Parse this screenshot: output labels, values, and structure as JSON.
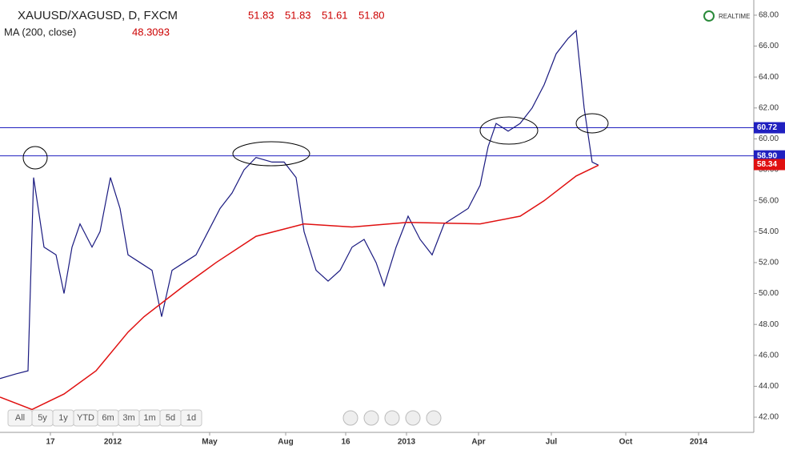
{
  "chart_data": {
    "type": "line",
    "title": "XAUUSD/XAGUSD, D, FXCM",
    "ohlc_labels": [
      "51.83",
      "51.83",
      "51.61",
      "51.80"
    ],
    "indicator": "MA (200, close)",
    "indicator_value": "48.3093",
    "realtime": "REALTIME",
    "xlim": [
      0,
      94.2
    ],
    "xticks": [
      {
        "value": 6.3,
        "label": "17"
      },
      {
        "value": 14.1,
        "label": "2012"
      },
      {
        "value": 26.2,
        "label": "May"
      },
      {
        "value": 35.7,
        "label": "Aug"
      },
      {
        "value": 43.2,
        "label": "16"
      },
      {
        "value": 50.8,
        "label": "2013"
      },
      {
        "value": 59.8,
        "label": "Apr"
      },
      {
        "value": 68.9,
        "label": "Jul"
      },
      {
        "value": 78.2,
        "label": "Oct"
      },
      {
        "value": 87.3,
        "label": "2014"
      }
    ],
    "ylim": [
      41.5,
      68.5
    ],
    "yticks": [
      {
        "value": 42,
        "label": "42.00"
      },
      {
        "value": 44,
        "label": "44.00"
      },
      {
        "value": 46,
        "label": "46.00"
      },
      {
        "value": 48,
        "label": "48.00"
      },
      {
        "value": 50,
        "label": "50.00"
      },
      {
        "value": 52,
        "label": "52.00"
      },
      {
        "value": 54,
        "label": "54.00"
      },
      {
        "value": 56,
        "label": "56.00"
      },
      {
        "value": 58,
        "label": "58.00"
      },
      {
        "value": 60,
        "label": "60.00"
      },
      {
        "value": 62,
        "label": "62.00"
      },
      {
        "value": 64,
        "label": "64.00"
      },
      {
        "value": 66,
        "label": "66.00"
      },
      {
        "value": 68,
        "label": "68.00"
      }
    ],
    "series": [
      {
        "name": "XAUUSD/XAGUSD",
        "color": "#1a1a80",
        "x": [
          0,
          2,
          3.5,
          4.2,
          5.5,
          7,
          8,
          9,
          10,
          11.5,
          12.5,
          13.8,
          15,
          16,
          17.5,
          19,
          20.2,
          21.5,
          23,
          24.5,
          26,
          27.5,
          29,
          30.5,
          32,
          34,
          35.5,
          37,
          38,
          39.5,
          41,
          42.5,
          44,
          45.5,
          47,
          48,
          49.5,
          51,
          52.5,
          54,
          55.5,
          57,
          58.5,
          60,
          61,
          62,
          63.5,
          65,
          66.5,
          68,
          69.5,
          71,
          72,
          73,
          74,
          74.8
        ],
        "values": [
          44.5,
          44.8,
          45,
          57.5,
          53,
          52.5,
          50,
          53,
          54.5,
          53,
          54,
          57.5,
          55.5,
          52.5,
          52,
          51.5,
          48.5,
          51.5,
          52,
          52.5,
          54,
          55.5,
          56.5,
          58,
          58.8,
          58.5,
          58.5,
          57.5,
          54,
          51.5,
          50.8,
          51.5,
          53,
          53.5,
          52,
          50.5,
          53,
          55,
          53.5,
          52.5,
          54.5,
          55,
          55.5,
          57,
          59.5,
          61,
          60.5,
          61,
          62,
          63.5,
          65.5,
          66.5,
          67,
          62,
          58.5,
          58.3
        ]
      },
      {
        "name": "MA (200, close)",
        "color": "#e01010",
        "x": [
          0,
          4,
          8,
          12,
          16,
          18,
          23,
          27,
          32,
          38,
          44,
          51,
          60,
          65,
          68,
          72,
          74.8
        ],
        "values": [
          43.3,
          42.5,
          43.5,
          45,
          47.5,
          48.5,
          50.5,
          52,
          53.7,
          54.5,
          54.3,
          54.6,
          54.5,
          55,
          56,
          57.6,
          58.3
        ]
      }
    ],
    "levels": [
      {
        "value": 60.72,
        "label": "60.72"
      },
      {
        "value": 58.9,
        "label": "58.90"
      }
    ],
    "last_ma": {
      "value": 58.34,
      "label": "58.34"
    },
    "range_buttons": [
      "All",
      "5y",
      "1y",
      "YTD",
      "6m",
      "3m",
      "1m",
      "5d",
      "1d"
    ]
  }
}
